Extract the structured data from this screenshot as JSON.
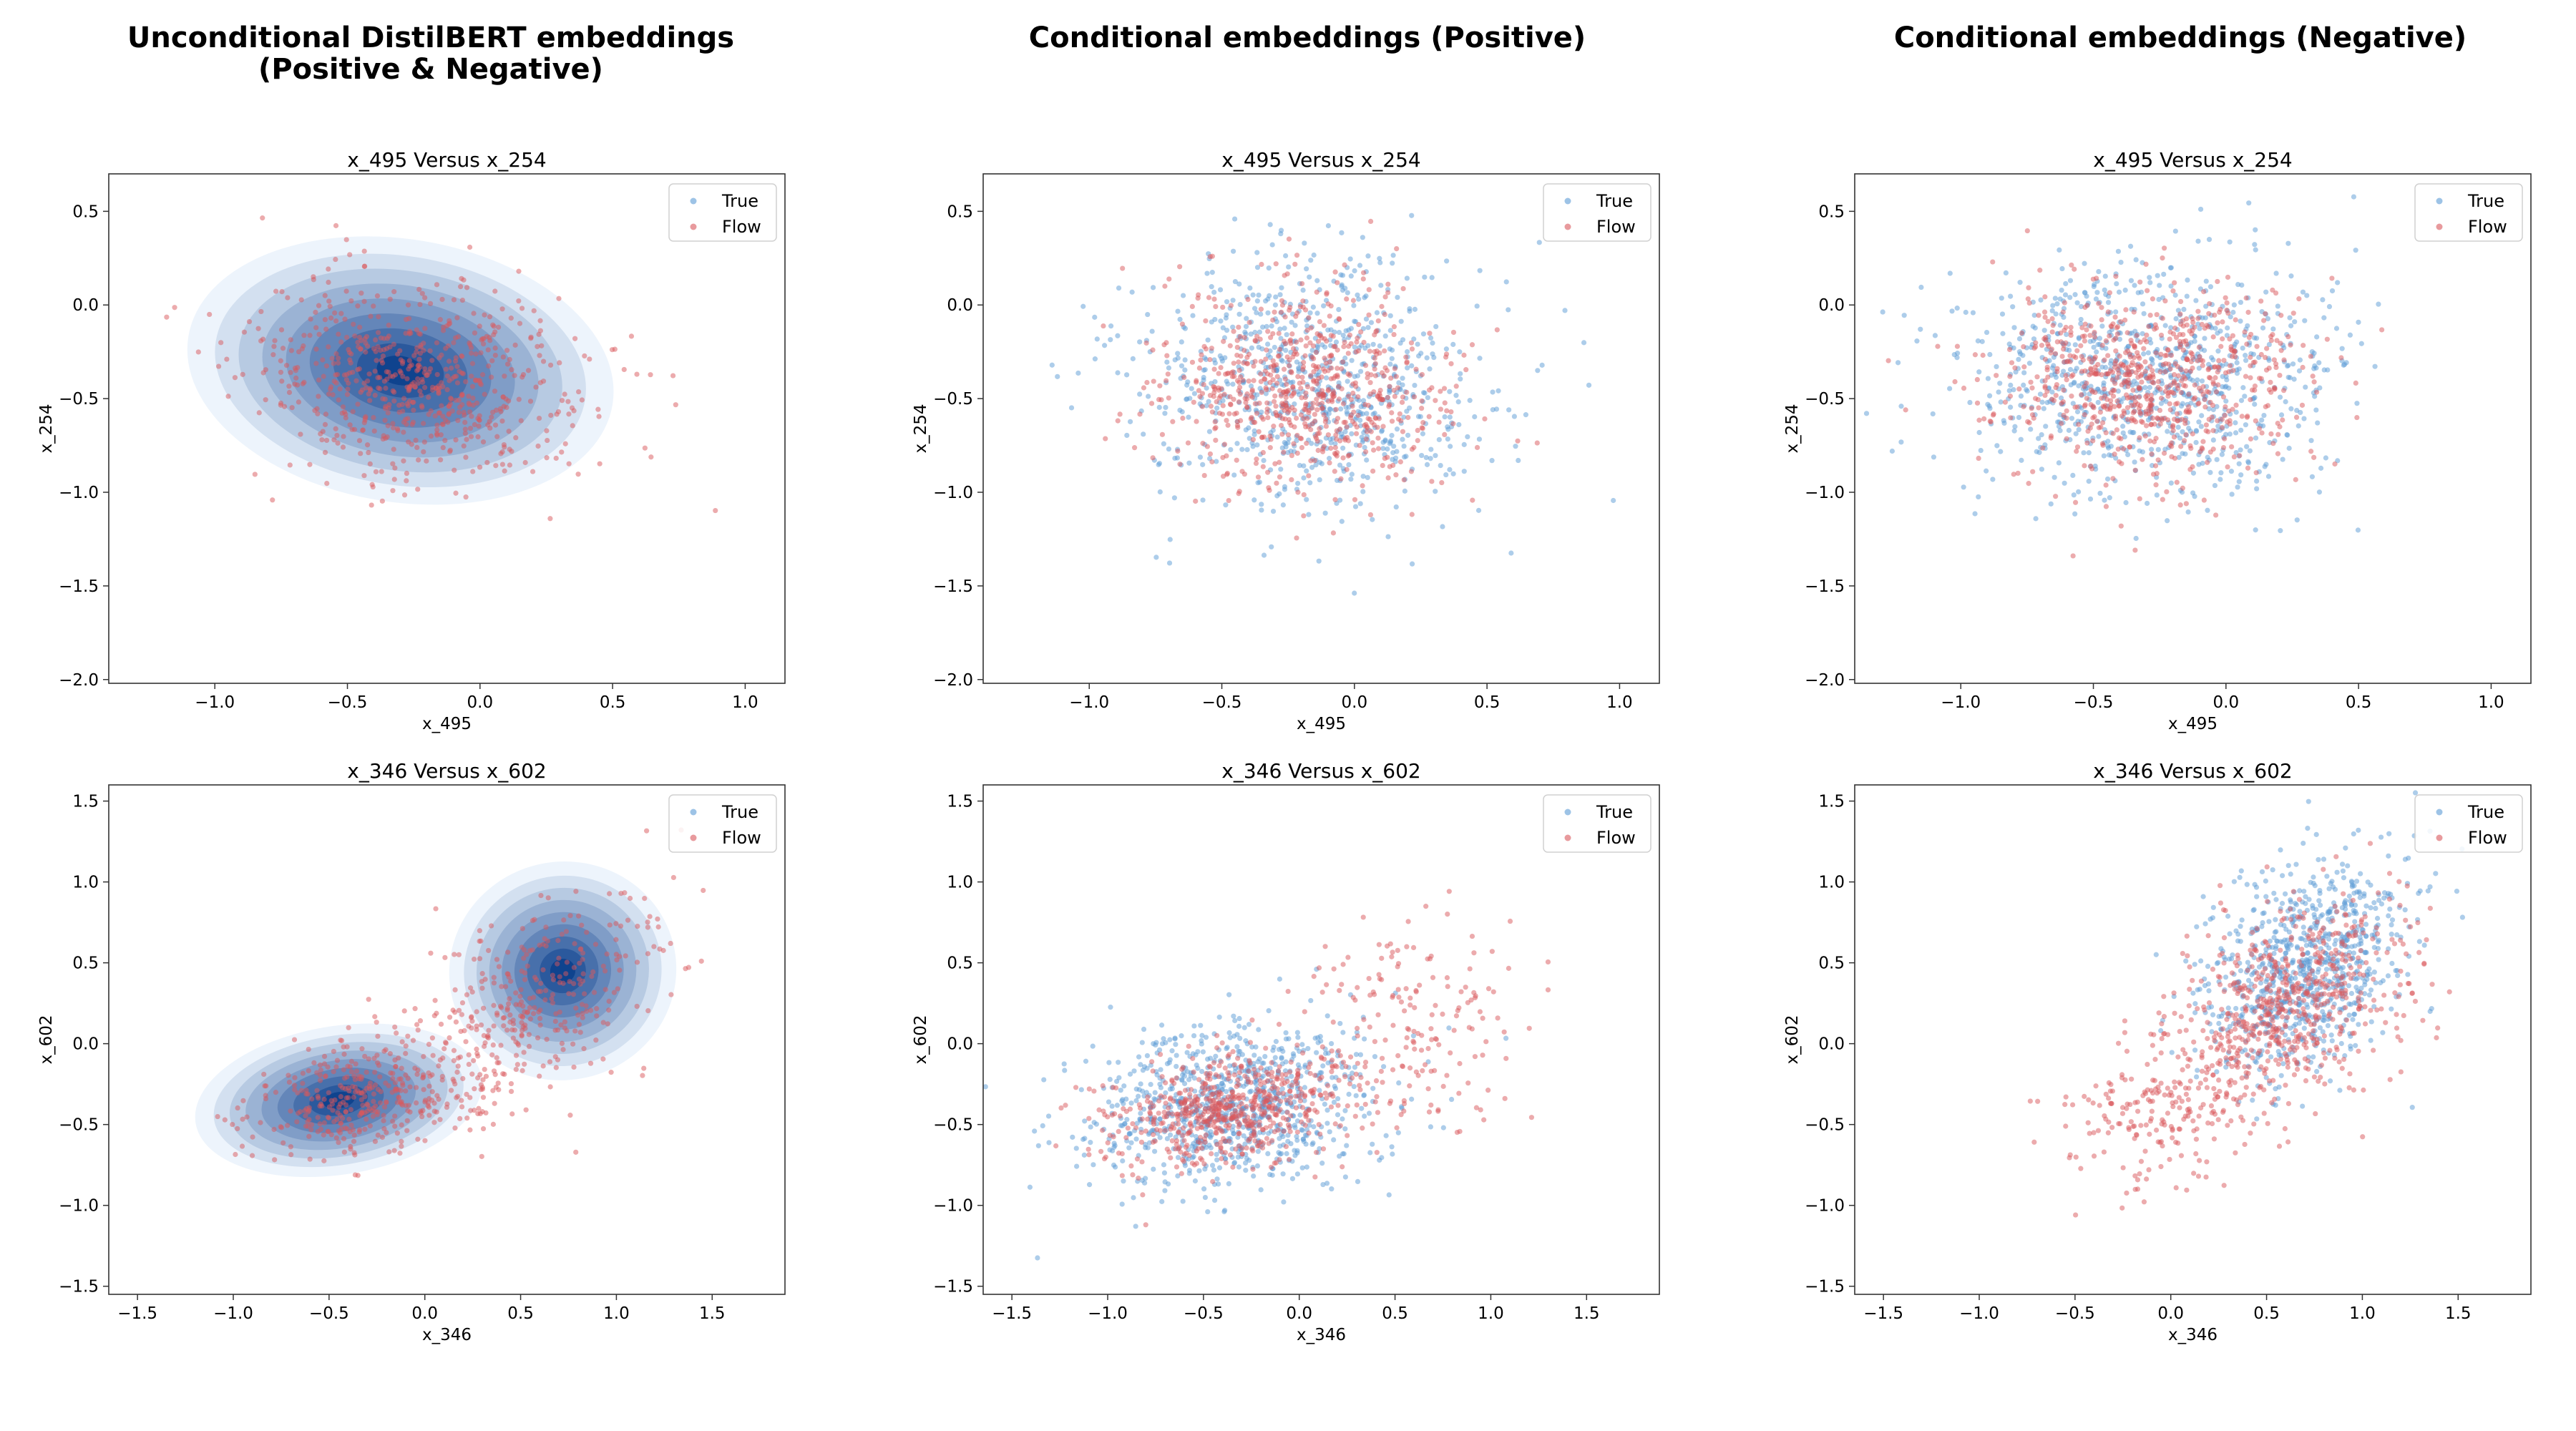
{
  "figure": {
    "column_titles": [
      [
        "Unconditional DistilBERT embeddings",
        "(Positive & Negative)"
      ],
      [
        "Conditional embeddings (Positive)"
      ],
      [
        "Conditional embeddings (Negative)"
      ]
    ]
  },
  "colors": {
    "true_series": "#5b9bd5",
    "flow_series": "#d9575b",
    "kde_light": "#eaf2fb",
    "kde_dark": "#0b3f8c"
  },
  "chart_data": [
    {
      "type": "scatter",
      "column": 0,
      "row": 0,
      "title": "x_495 Versus x_254",
      "xlabel": "x_495",
      "ylabel": "x_254",
      "xlim": [
        -1.4,
        1.15
      ],
      "ylim": [
        -2.02,
        0.7
      ],
      "xticks": [
        -1.0,
        -0.5,
        0.0,
        0.5,
        1.0
      ],
      "xtick_labels": [
        "−1.0",
        "−0.5",
        "0.0",
        "0.5",
        "1.0"
      ],
      "yticks": [
        -2.0,
        -1.5,
        -1.0,
        -0.5,
        0.0,
        0.5
      ],
      "ytick_labels": [
        "−2.0",
        "−1.5",
        "−1.0",
        "−0.5",
        "0.0",
        "0.5"
      ],
      "legend": {
        "position": "top-right",
        "entries": [
          "True",
          "Flow"
        ]
      },
      "true_style": "kde",
      "series": [
        {
          "name": "True",
          "clusters": [
            {
              "cx": -0.3,
              "cy": -0.35,
              "sx": 0.3,
              "sy": 0.26,
              "rho": -0.2,
              "w": 1
            }
          ]
        },
        {
          "name": "Flow",
          "clusters": [
            {
              "cx": -0.25,
              "cy": -0.4,
              "sx": 0.32,
              "sy": 0.27,
              "rho": -0.2,
              "w": 1
            }
          ]
        }
      ],
      "n_true": 1000,
      "n_flow": 650,
      "seed": 11
    },
    {
      "type": "scatter",
      "column": 1,
      "row": 0,
      "title": "x_495 Versus x_254",
      "xlabel": "x_495",
      "ylabel": "x_254",
      "xlim": [
        -1.4,
        1.15
      ],
      "ylim": [
        -2.02,
        0.7
      ],
      "xticks": [
        -1.0,
        -0.5,
        0.0,
        0.5,
        1.0
      ],
      "xtick_labels": [
        "−1.0",
        "−0.5",
        "0.0",
        "0.5",
        "1.0"
      ],
      "yticks": [
        -2.0,
        -1.5,
        -1.0,
        -0.5,
        0.0,
        0.5
      ],
      "ytick_labels": [
        "−2.0",
        "−1.5",
        "−1.0",
        "−0.5",
        "0.0",
        "0.5"
      ],
      "legend": {
        "position": "top-right",
        "entries": [
          "True",
          "Flow"
        ]
      },
      "true_style": "points",
      "series": [
        {
          "name": "True",
          "clusters": [
            {
              "cx": -0.15,
              "cy": -0.45,
              "sx": 0.33,
              "sy": 0.34,
              "rho": -0.1,
              "w": 1
            }
          ]
        },
        {
          "name": "Flow",
          "clusters": [
            {
              "cx": -0.2,
              "cy": -0.45,
              "sx": 0.27,
              "sy": 0.26,
              "rho": -0.1,
              "w": 1
            }
          ]
        }
      ],
      "n_true": 800,
      "n_flow": 700,
      "seed": 23
    },
    {
      "type": "scatter",
      "column": 2,
      "row": 0,
      "title": "x_495 Versus x_254",
      "xlabel": "x_495",
      "ylabel": "x_254",
      "xlim": [
        -1.4,
        1.15
      ],
      "ylim": [
        -2.02,
        0.7
      ],
      "xticks": [
        -1.0,
        -0.5,
        0.0,
        0.5,
        1.0
      ],
      "xtick_labels": [
        "−1.0",
        "−0.5",
        "0.0",
        "0.5",
        "1.0"
      ],
      "yticks": [
        -2.0,
        -1.5,
        -1.0,
        -0.5,
        0.0,
        0.5
      ],
      "ytick_labels": [
        "−2.0",
        "−1.5",
        "−1.0",
        "−0.5",
        "0.0",
        "0.5"
      ],
      "legend": {
        "position": "top-right",
        "entries": [
          "True",
          "Flow"
        ]
      },
      "true_style": "points",
      "series": [
        {
          "name": "True",
          "clusters": [
            {
              "cx": -0.3,
              "cy": -0.4,
              "sx": 0.36,
              "sy": 0.3,
              "rho": 0.0,
              "w": 1
            }
          ]
        },
        {
          "name": "Flow",
          "clusters": [
            {
              "cx": -0.3,
              "cy": -0.42,
              "sx": 0.28,
              "sy": 0.25,
              "rho": 0.0,
              "w": 1
            }
          ]
        }
      ],
      "n_true": 900,
      "n_flow": 750,
      "seed": 37
    },
    {
      "type": "scatter",
      "column": 0,
      "row": 1,
      "title": "x_346 Versus x_602",
      "xlabel": "x_346",
      "ylabel": "x_602",
      "xlim": [
        -1.65,
        1.88
      ],
      "ylim": [
        -1.55,
        1.6
      ],
      "xticks": [
        -1.5,
        -1.0,
        -0.5,
        0.0,
        0.5,
        1.0,
        1.5
      ],
      "xtick_labels": [
        "−1.5",
        "−1.0",
        "−0.5",
        "0.0",
        "0.5",
        "1.0",
        "1.5"
      ],
      "yticks": [
        -1.5,
        -1.0,
        -0.5,
        0.0,
        0.5,
        1.0,
        1.5
      ],
      "ytick_labels": [
        "−1.5",
        "−1.0",
        "−0.5",
        "0.0",
        "0.5",
        "1.0",
        "1.5"
      ],
      "legend": {
        "position": "top-right",
        "entries": [
          "True",
          "Flow"
        ]
      },
      "true_style": "kde",
      "series": [
        {
          "name": "True",
          "clusters": [
            {
              "cx": -0.45,
              "cy": -0.35,
              "sx": 0.28,
              "sy": 0.17,
              "rho": 0.2,
              "w": 0.5
            },
            {
              "cx": 0.72,
              "cy": 0.45,
              "sx": 0.22,
              "sy": 0.25,
              "rho": 0.3,
              "w": 0.5
            }
          ]
        },
        {
          "name": "Flow",
          "clusters": [
            {
              "cx": -0.35,
              "cy": -0.35,
              "sx": 0.3,
              "sy": 0.18,
              "rho": 0.2,
              "w": 0.45
            },
            {
              "cx": 0.55,
              "cy": 0.2,
              "sx": 0.33,
              "sy": 0.35,
              "rho": 0.5,
              "w": 0.55
            }
          ]
        }
      ],
      "n_true": 1000,
      "n_flow": 700,
      "seed": 53
    },
    {
      "type": "scatter",
      "column": 1,
      "row": 1,
      "title": "x_346 Versus x_602",
      "xlabel": "x_346",
      "ylabel": "x_602",
      "xlim": [
        -1.65,
        1.88
      ],
      "ylim": [
        -1.55,
        1.6
      ],
      "xticks": [
        -1.5,
        -1.0,
        -0.5,
        0.0,
        0.5,
        1.0,
        1.5
      ],
      "xtick_labels": [
        "−1.5",
        "−1.0",
        "−0.5",
        "0.0",
        "0.5",
        "1.0",
        "1.5"
      ],
      "yticks": [
        -1.5,
        -1.0,
        -0.5,
        0.0,
        0.5,
        1.0,
        1.5
      ],
      "ytick_labels": [
        "−1.5",
        "−1.0",
        "−0.5",
        "0.0",
        "0.5",
        "1.0",
        "1.5"
      ],
      "legend": {
        "position": "top-right",
        "entries": [
          "True",
          "Flow"
        ]
      },
      "true_style": "points",
      "series": [
        {
          "name": "True",
          "clusters": [
            {
              "cx": -0.35,
              "cy": -0.4,
              "sx": 0.38,
              "sy": 0.26,
              "rho": 0.2,
              "w": 1
            }
          ]
        },
        {
          "name": "Flow",
          "clusters": [
            {
              "cx": -0.4,
              "cy": -0.42,
              "sx": 0.3,
              "sy": 0.17,
              "rho": 0.2,
              "w": 0.75
            },
            {
              "cx": 0.55,
              "cy": 0.05,
              "sx": 0.35,
              "sy": 0.35,
              "rho": 0.3,
              "w": 0.25
            }
          ]
        }
      ],
      "n_true": 900,
      "n_flow": 800,
      "seed": 71
    },
    {
      "type": "scatter",
      "column": 2,
      "row": 1,
      "title": "x_346 Versus x_602",
      "xlabel": "x_346",
      "ylabel": "x_602",
      "xlim": [
        -1.65,
        1.88
      ],
      "ylim": [
        -1.55,
        1.6
      ],
      "xticks": [
        -1.5,
        -1.0,
        -0.5,
        0.0,
        0.5,
        1.0,
        1.5
      ],
      "xtick_labels": [
        "−1.5",
        "−1.0",
        "−0.5",
        "0.0",
        "0.5",
        "1.0",
        "1.5"
      ],
      "yticks": [
        -1.5,
        -1.0,
        -0.5,
        0.0,
        0.5,
        1.0,
        1.5
      ],
      "ytick_labels": [
        "−1.5",
        "−1.0",
        "−0.5",
        "0.0",
        "0.5",
        "1.0",
        "1.5"
      ],
      "legend": {
        "position": "top-right",
        "entries": [
          "True",
          "Flow"
        ]
      },
      "true_style": "points",
      "series": [
        {
          "name": "True",
          "clusters": [
            {
              "cx": 0.7,
              "cy": 0.45,
              "sx": 0.27,
              "sy": 0.33,
              "rho": 0.3,
              "w": 1
            }
          ]
        },
        {
          "name": "Flow",
          "clusters": [
            {
              "cx": 0.65,
              "cy": 0.3,
              "sx": 0.28,
              "sy": 0.3,
              "rho": 0.3,
              "w": 0.7
            },
            {
              "cx": 0.05,
              "cy": -0.35,
              "sx": 0.3,
              "sy": 0.25,
              "rho": 0.3,
              "w": 0.3
            }
          ]
        }
      ],
      "n_true": 850,
      "n_flow": 850,
      "seed": 97
    }
  ]
}
